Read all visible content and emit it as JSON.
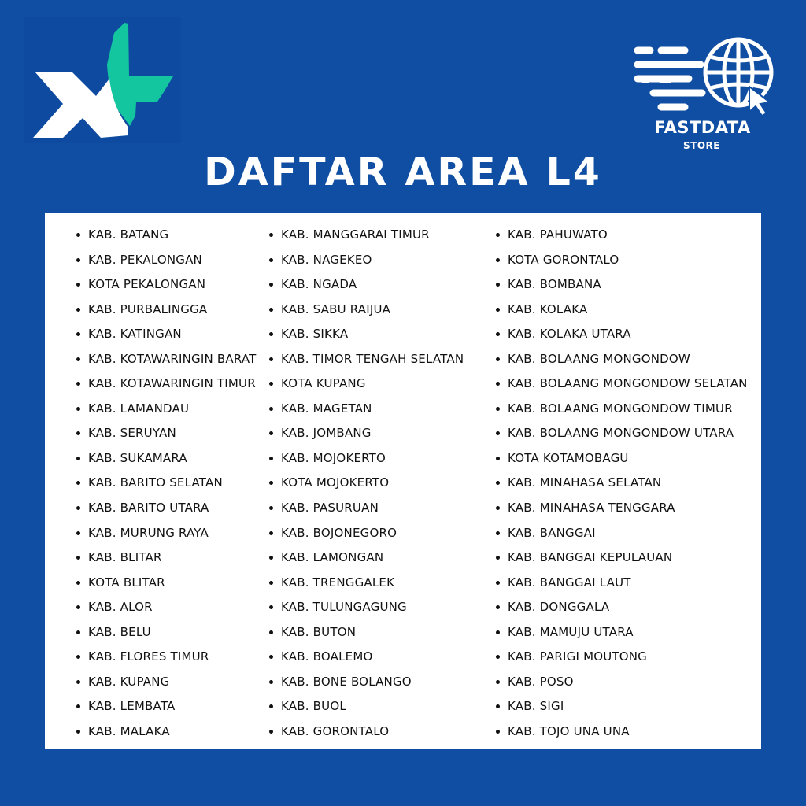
{
  "brand_left": {
    "name": "XL",
    "colors": {
      "white": "#ffffff",
      "green": "#13c6a0"
    }
  },
  "brand_right": {
    "name": "FASTDATA",
    "subtitle": "STORE"
  },
  "title": "DAFTAR AREA L4",
  "colors": {
    "background": "#0f4ea2",
    "panel": "#ffffff",
    "text": "#111111"
  },
  "columns": [
    [
      "KAB. BATANG",
      "KAB. PEKALONGAN",
      "KOTA PEKALONGAN",
      "KAB. PURBALINGGA",
      "KAB. KATINGAN",
      "KAB. KOTAWARINGIN BARAT",
      "KAB. KOTAWARINGIN TIMUR",
      "KAB. LAMANDAU",
      "KAB. SERUYAN",
      "KAB. SUKAMARA",
      "KAB. BARITO SELATAN",
      "KAB. BARITO UTARA",
      "KAB. MURUNG RAYA",
      "KAB. BLITAR",
      "KOTA BLITAR",
      "KAB. ALOR",
      "KAB. BELU",
      "KAB. FLORES TIMUR",
      "KAB. KUPANG",
      "KAB. LEMBATA",
      "KAB. MALAKA"
    ],
    [
      "KAB. MANGGARAI TIMUR",
      "KAB. NAGEKEO",
      "KAB. NGADA",
      "KAB. SABU RAIJUA",
      "KAB. SIKKA",
      "KAB. TIMOR TENGAH SELATAN",
      "KOTA KUPANG",
      "KAB. MAGETAN",
      "KAB. JOMBANG",
      "KAB. MOJOKERTO",
      "KOTA MOJOKERTO",
      "KAB. PASURUAN",
      "KAB. BOJONEGORO",
      "KAB. LAMONGAN",
      "KAB. TRENGGALEK",
      "KAB. TULUNGAGUNG",
      "KAB. BUTON",
      "KAB. BOALEMO",
      "KAB. BONE BOLANGO",
      "KAB. BUOL",
      "KAB. GORONTALO"
    ],
    [
      "KAB. PAHUWATO",
      "KOTA GORONTALO",
      "KAB. BOMBANA",
      "KAB. KOLAKA",
      "KAB. KOLAKA UTARA",
      "KAB. BOLAANG MONGONDOW",
      "KAB. BOLAANG MONGONDOW SELATAN",
      "KAB. BOLAANG MONGONDOW TIMUR",
      "KAB. BOLAANG MONGONDOW UTARA",
      "KOTA KOTAMOBAGU",
      "KAB. MINAHASA SELATAN",
      "KAB. MINAHASA TENGGARA",
      "KAB. BANGGAI",
      "KAB. BANGGAI KEPULAUAN",
      "KAB. BANGGAI LAUT",
      "KAB. DONGGALA",
      "KAB. MAMUJU UTARA",
      "KAB. PARIGI MOUTONG",
      "KAB. POSO",
      "KAB. SIGI",
      "KAB. TOJO UNA UNA"
    ]
  ]
}
